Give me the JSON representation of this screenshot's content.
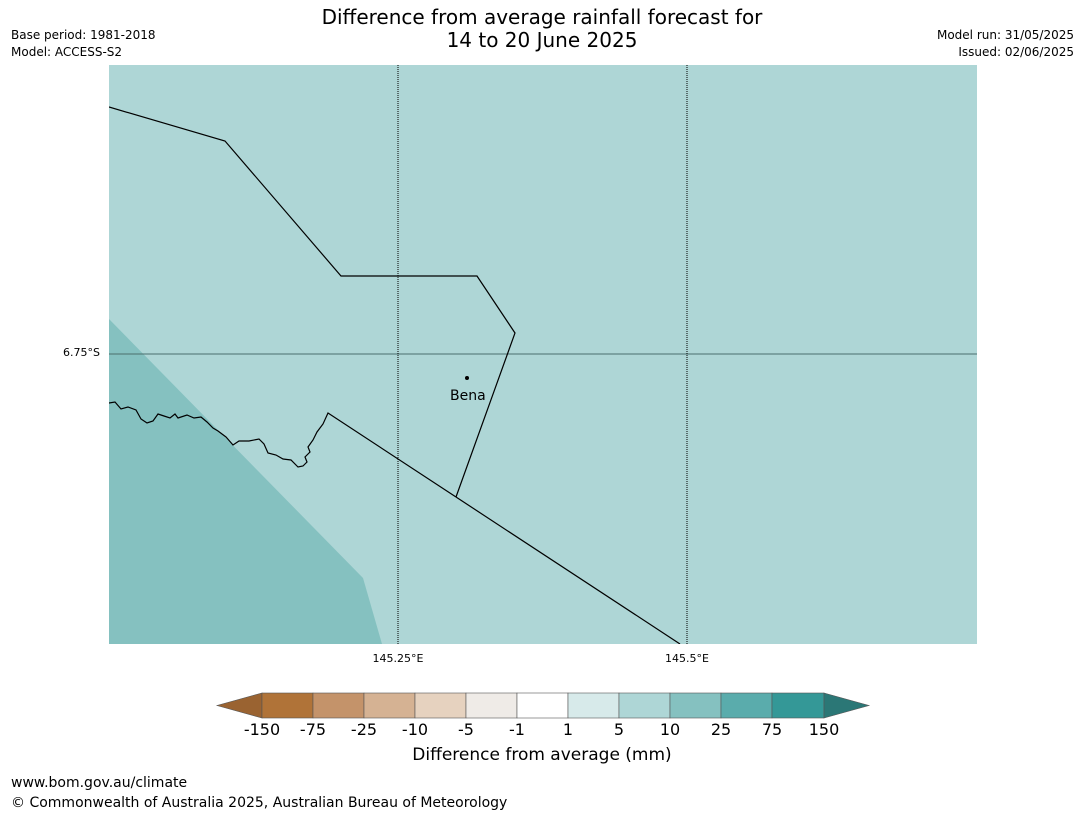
{
  "header": {
    "title_line1": "Difference from average rainfall forecast for",
    "title_line2": "14 to 20 June 2025",
    "base_period": "Base period: 1981-2018",
    "model": "Model: ACCESS-S2",
    "model_run": "Model run: 31/05/2025",
    "issued": "Issued: 02/06/2025"
  },
  "map": {
    "latitude_labels": [
      "6.75°S"
    ],
    "longitude_labels": [
      "145.25°E",
      "145.5°E"
    ],
    "places": [
      {
        "name": "Bena"
      }
    ],
    "dominant_category": "5 to 10",
    "secondary_category": "10 to 25"
  },
  "legend": {
    "title": "Difference from average (mm)",
    "ticks": [
      "-150",
      "-75",
      "-25",
      "-10",
      "-5",
      "-1",
      "1",
      "5",
      "10",
      "25",
      "75",
      "150"
    ],
    "colors": [
      "#9a6331",
      "#b07338",
      "#c4936a",
      "#d5b293",
      "#e6d2bf",
      "#efebe7",
      "#ffffff",
      "#d7eaea",
      "#aed6d6",
      "#85c1c0",
      "#5aacac",
      "#349897",
      "#2b7776"
    ]
  },
  "footer": {
    "url": "www.bom.gov.au/climate",
    "copyright": "© Commonwealth of Australia 2025, Australian Bureau of Meteorology"
  }
}
